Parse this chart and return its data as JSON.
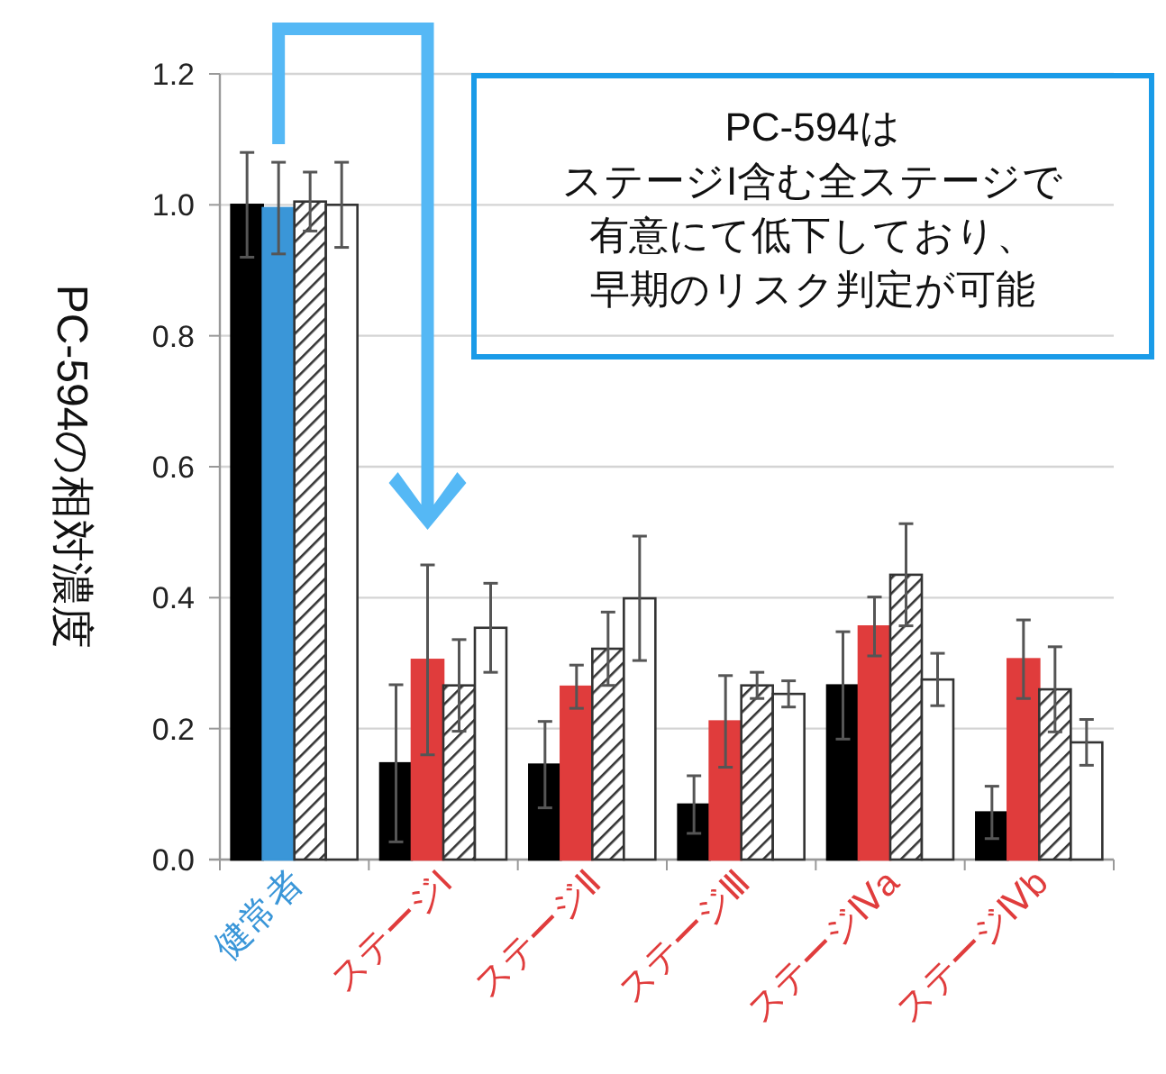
{
  "chart_data": {
    "type": "bar",
    "ylabel": "PC-594の相対濃度",
    "categories": [
      "健常者",
      "ステージI",
      "ステージⅡ",
      "ステージⅢ",
      "ステージⅣa",
      "ステージⅣb"
    ],
    "series": [
      {
        "color": "#000000",
        "values": [
          1.0,
          0.147,
          0.145,
          0.084,
          0.266,
          0.072
        ],
        "errors": [
          0.08,
          0.12,
          0.066,
          0.044,
          0.082,
          0.04
        ]
      },
      {
        "colors": [
          "#3a96d8",
          "#e03c3c",
          "#e03c3c",
          "#e03c3c",
          "#e03c3c",
          "#e03c3c"
        ],
        "values": [
          0.995,
          0.305,
          0.264,
          0.211,
          0.356,
          0.306
        ],
        "errors": [
          0.07,
          0.145,
          0.033,
          0.07,
          0.045,
          0.06
        ]
      },
      {
        "color": "#333333",
        "values": [
          1.005,
          0.266,
          0.322,
          0.266,
          0.435,
          0.26
        ],
        "errors": [
          0.045,
          0.07,
          0.056,
          0.02,
          0.078,
          0.065
        ]
      },
      {
        "color": "#ffffff",
        "values": [
          1.0,
          0.354,
          0.399,
          0.253,
          0.275,
          0.179
        ],
        "errors": [
          0.065,
          0.068,
          0.095,
          0.02,
          0.04,
          0.035
        ]
      }
    ],
    "ylim": [
      0,
      1.2
    ],
    "yticks": [
      {
        "value": 0,
        "label": "0.0"
      },
      {
        "value": 0.2,
        "label": "0.2"
      },
      {
        "value": 0.4,
        "label": "0.4"
      },
      {
        "value": 0.6,
        "label": "0.6"
      },
      {
        "value": 0.8,
        "label": "0.8"
      },
      {
        "value": 1.0,
        "label": "1.0"
      },
      {
        "value": 1.2,
        "label": "1.2"
      }
    ],
    "grid": "y",
    "annotations": [
      "PC-594は",
      "ステージI含む全ステージで",
      "有意にて低下しており、",
      "早期のリスク判定が可能"
    ]
  }
}
